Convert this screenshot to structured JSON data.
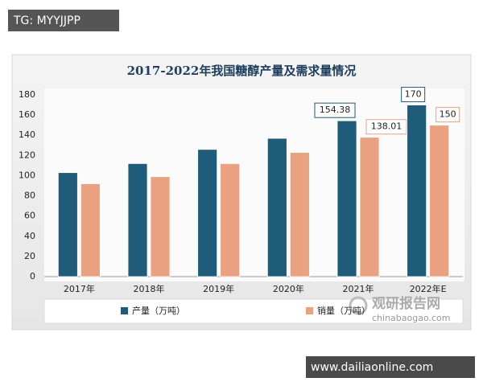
{
  "chart_data": {
    "type": "bar",
    "title": "2017-2022年我国糖醇产量及需求量情况",
    "categories": [
      "2017年",
      "2018年",
      "2019年",
      "2020年",
      "2021年",
      "2022年E"
    ],
    "series": [
      {
        "name": "产量（万吨）",
        "color": "#1f5c7a",
        "values": [
          103,
          112,
          126,
          137,
          154.38,
          170
        ],
        "value_labels": [
          null,
          null,
          null,
          null,
          "154.38",
          "170"
        ]
      },
      {
        "name": "销量（万吨）",
        "color": "#e9a180",
        "values": [
          92,
          99,
          112,
          123,
          138.01,
          150
        ],
        "value_labels": [
          null,
          null,
          null,
          null,
          "138.01",
          "150"
        ]
      }
    ],
    "ylim": [
      0,
      180
    ],
    "yticks": [
      0,
      20,
      40,
      60,
      80,
      100,
      120,
      140,
      160,
      180
    ],
    "grid": false,
    "legend": "bottom"
  },
  "watermarks": {
    "top_left": "TG: MYYJJPP",
    "bottom_right": "www.dailiaonline.com",
    "logo_name": "观研报告网",
    "logo_url": "chinabaogao.com"
  }
}
